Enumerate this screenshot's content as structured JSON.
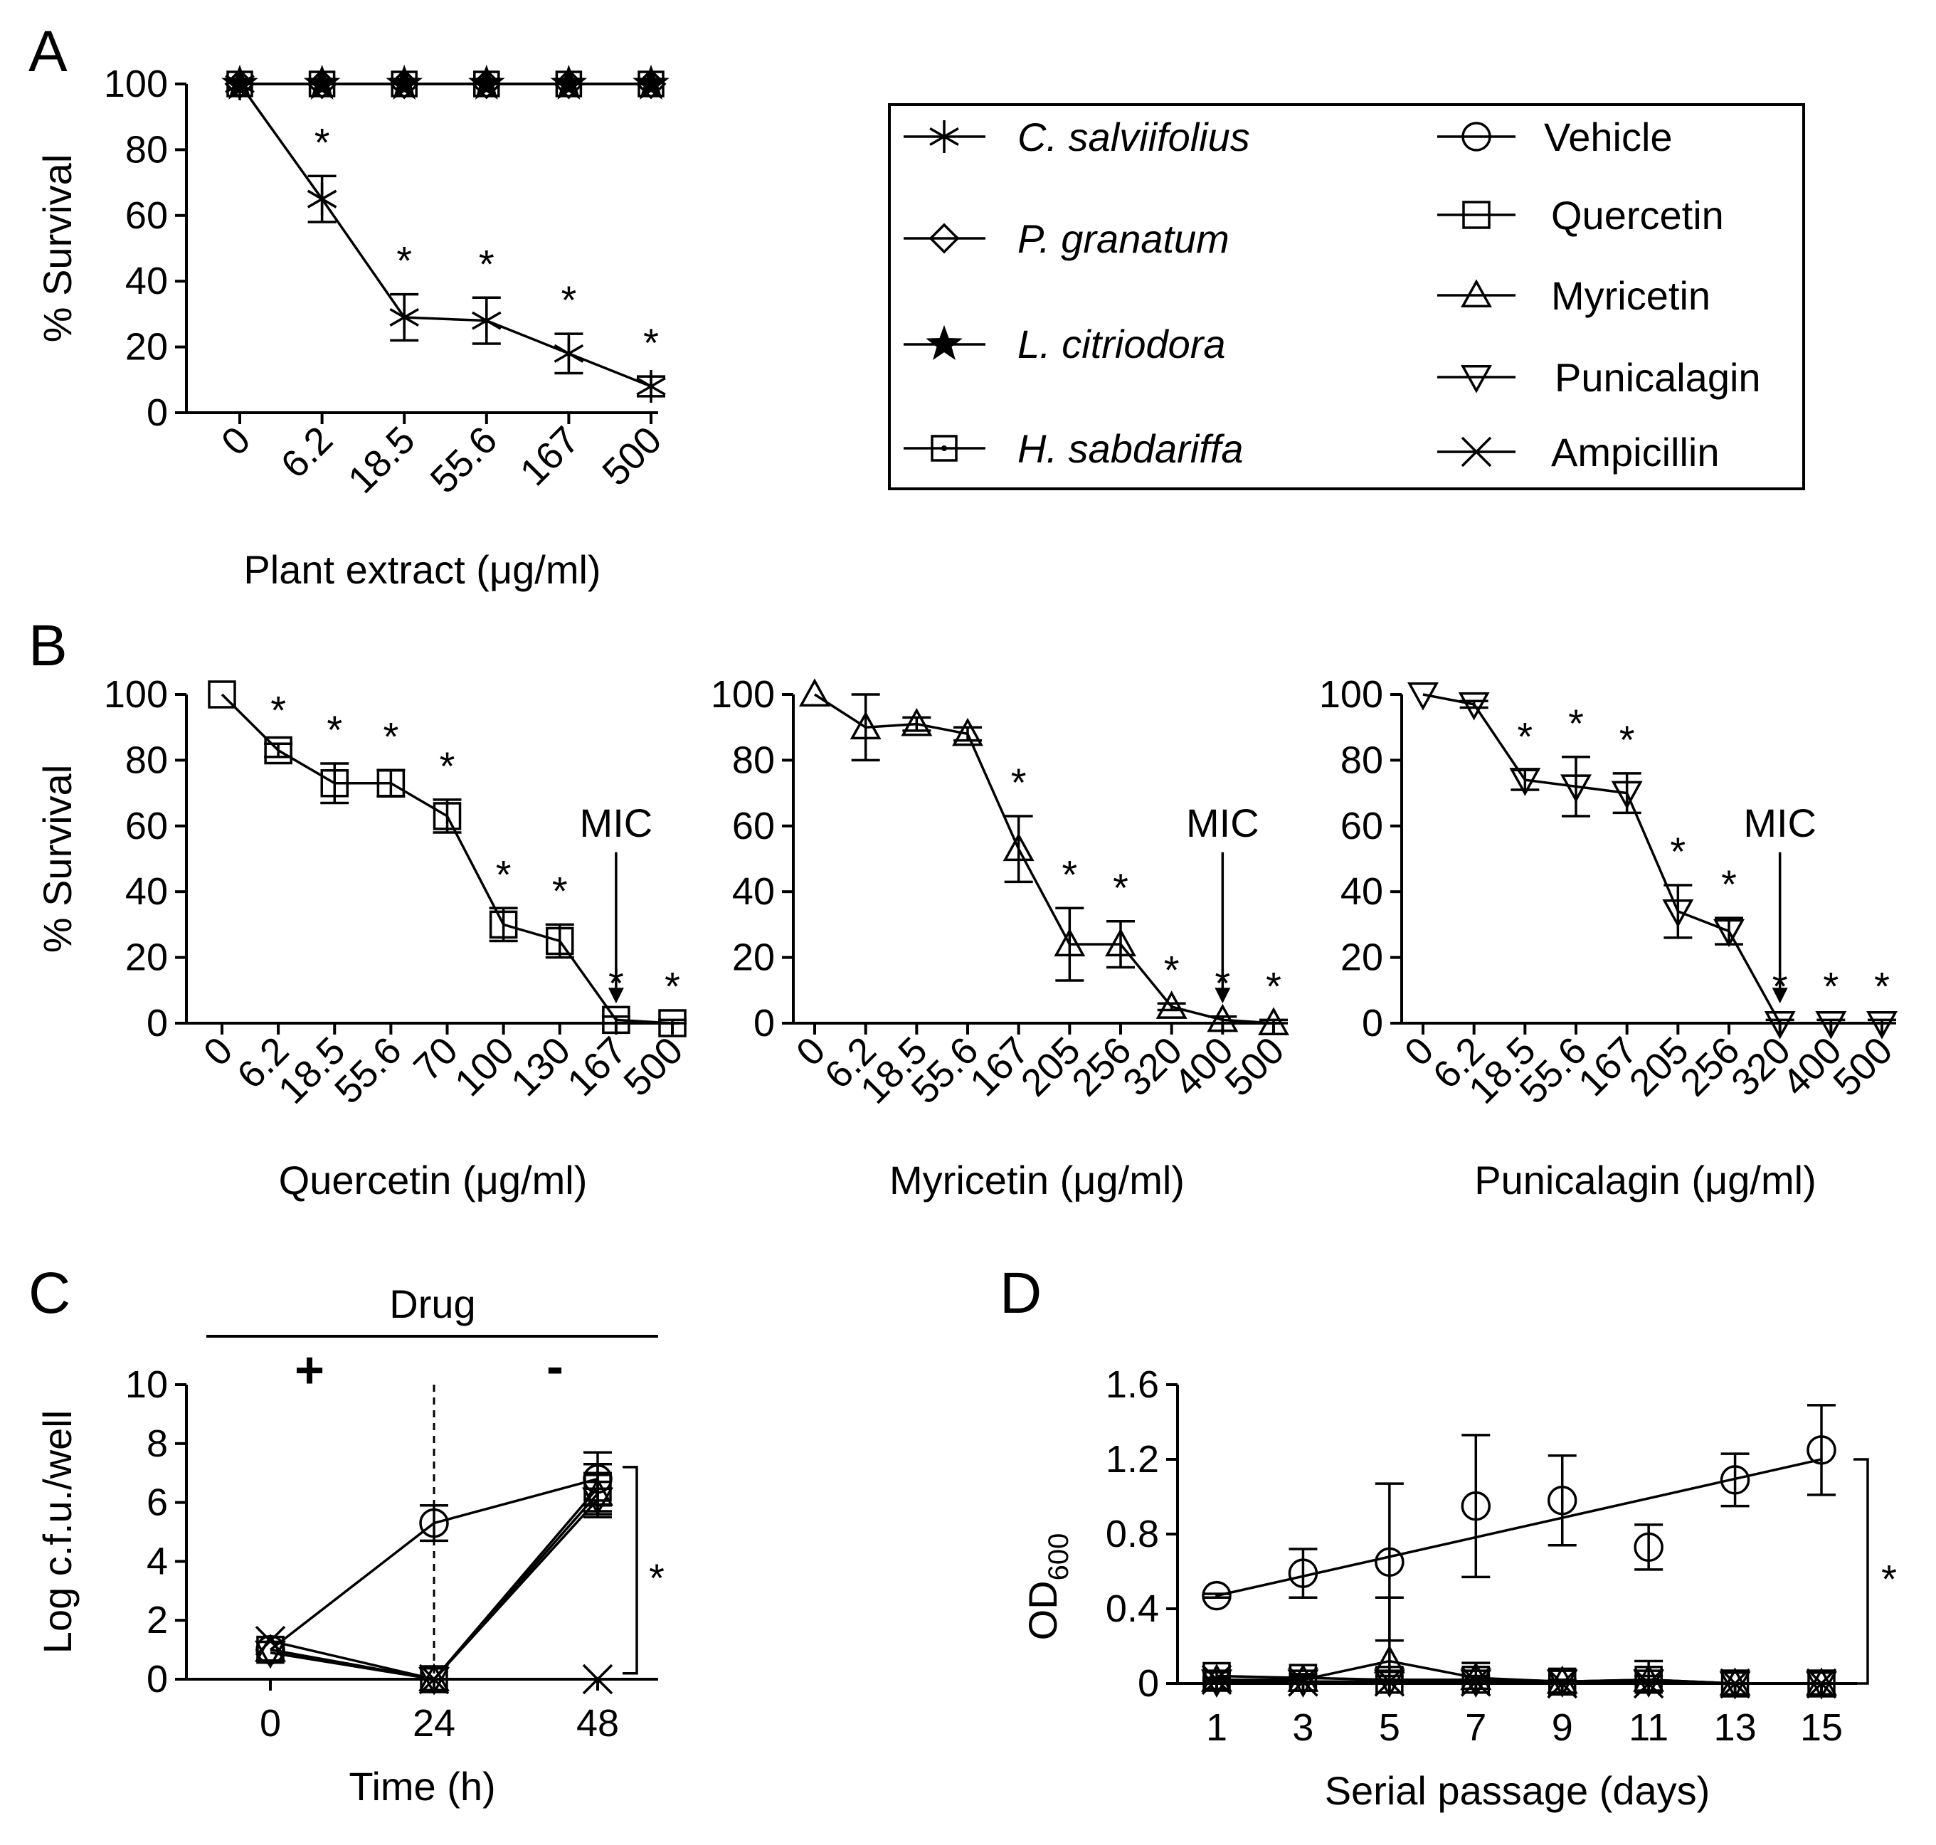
{
  "panel_labels": {
    "A": "A",
    "B": "B",
    "C": "C",
    "D": "D"
  },
  "legend": {
    "extracts": [
      "C. salviifolius",
      "P. granatum",
      "L. citriodora",
      "H. sabdariffa"
    ],
    "compounds": [
      "Vehicle",
      "Quercetin",
      "Myricetin",
      "Punicalagin",
      "Ampicillin"
    ]
  },
  "annotations": {
    "mic": "MIC",
    "drug": "Drug",
    "plus": "+",
    "minus": "-"
  },
  "chart_data": [
    {
      "id": "A",
      "type": "line",
      "xlabel": "Plant extract (μg/ml)",
      "ylabel": "% Survival",
      "categories": [
        "0",
        "6.2",
        "18.5",
        "55.6",
        "167",
        "500"
      ],
      "ylim": [
        0,
        100
      ],
      "yticks": [
        "0",
        "20",
        "40",
        "60",
        "80",
        "100"
      ],
      "series": [
        {
          "name": "C. salviifolius",
          "marker": "asterisk",
          "values": [
            100,
            65,
            29,
            28,
            18,
            8
          ],
          "err": [
            0,
            7,
            7,
            7,
            6,
            3
          ],
          "sig": [
            false,
            true,
            true,
            true,
            true,
            true
          ]
        },
        {
          "name": "P. granatum",
          "marker": "diamond",
          "values": [
            100,
            100,
            100,
            100,
            100,
            100
          ]
        },
        {
          "name": "L. citriodora",
          "marker": "star",
          "values": [
            100,
            100,
            100,
            100,
            100,
            100
          ]
        },
        {
          "name": "H. sabdariffa",
          "marker": "dotsquare",
          "values": [
            100,
            100,
            100,
            100,
            100,
            100
          ]
        }
      ]
    },
    {
      "id": "B1",
      "type": "line",
      "xlabel": "Quercetin (μg/ml)",
      "ylabel": "% Survival",
      "categories": [
        "0",
        "6.2",
        "18.5",
        "55.6",
        "70",
        "100",
        "130",
        "167",
        "500"
      ],
      "ylim": [
        0,
        100
      ],
      "yticks": [
        "0",
        "20",
        "40",
        "60",
        "80",
        "100"
      ],
      "mic_category": "167",
      "series": [
        {
          "name": "Quercetin",
          "marker": "square",
          "values": [
            100,
            83,
            73,
            73,
            63,
            30,
            25,
            1,
            0
          ],
          "err": [
            0,
            2,
            6,
            4,
            5,
            5,
            5,
            1,
            1
          ],
          "sig": [
            false,
            true,
            true,
            true,
            true,
            true,
            true,
            true,
            true
          ]
        }
      ]
    },
    {
      "id": "B2",
      "type": "line",
      "xlabel": "Myricetin (μg/ml)",
      "ylabel": "",
      "categories": [
        "0",
        "6.2",
        "18.5",
        "55.6",
        "167",
        "205",
        "256",
        "320",
        "400",
        "500"
      ],
      "ylim": [
        0,
        100
      ],
      "yticks": [
        "0",
        "20",
        "40",
        "60",
        "80",
        "100"
      ],
      "mic_category": "400",
      "series": [
        {
          "name": "Myricetin",
          "marker": "triangle",
          "values": [
            100,
            90,
            91,
            88,
            53,
            24,
            24,
            5,
            1,
            0
          ],
          "err": [
            0,
            10,
            2,
            2,
            10,
            11,
            7,
            1,
            1,
            1
          ],
          "sig": [
            false,
            false,
            false,
            false,
            true,
            true,
            true,
            true,
            true,
            true
          ]
        }
      ]
    },
    {
      "id": "B3",
      "type": "line",
      "xlabel": "Punicalagin (μg/ml)",
      "ylabel": "",
      "categories": [
        "0",
        "6.2",
        "18.5",
        "55.6",
        "167",
        "205",
        "256",
        "320",
        "400",
        "500"
      ],
      "ylim": [
        0,
        100
      ],
      "yticks": [
        "0",
        "20",
        "40",
        "60",
        "80",
        "100"
      ],
      "mic_category": "320",
      "series": [
        {
          "name": "Punicalagin",
          "marker": "itriangle",
          "values": [
            100,
            97,
            74,
            72,
            70,
            34,
            28,
            0,
            0,
            0
          ],
          "err": [
            0,
            1,
            3,
            9,
            6,
            8,
            4,
            1,
            1,
            1
          ],
          "sig": [
            false,
            false,
            true,
            true,
            true,
            true,
            true,
            true,
            true,
            true
          ]
        }
      ]
    },
    {
      "id": "C",
      "type": "line",
      "xlabel": "Time (h)",
      "ylabel": "Log c.f.u./well",
      "categories": [
        "0",
        "24",
        "48"
      ],
      "ylim": [
        0,
        10
      ],
      "yticks": [
        "0",
        "2",
        "4",
        "6",
        "8",
        "10"
      ],
      "series": [
        {
          "name": "Vehicle",
          "marker": "circle",
          "values": [
            1,
            5.3,
            6.8
          ],
          "err": [
            0,
            0.6,
            0.9
          ]
        },
        {
          "name": "Quercetin",
          "marker": "square",
          "values": [
            1,
            0,
            6.5
          ],
          "err": [
            0,
            0,
            0.8
          ]
        },
        {
          "name": "Myricetin",
          "marker": "triangle",
          "values": [
            1,
            0,
            6.3
          ],
          "err": [
            0,
            0,
            0.7
          ]
        },
        {
          "name": "Punicalagin",
          "marker": "itriangle",
          "values": [
            0.9,
            0,
            6.1
          ],
          "err": [
            0,
            0,
            0.6
          ]
        },
        {
          "name": "Ampicillin",
          "marker": "cross",
          "values": [
            1.3,
            0,
            0
          ],
          "err": [
            0,
            0,
            0
          ]
        }
      ]
    },
    {
      "id": "D",
      "type": "line",
      "xlabel": "Serial passage (days)",
      "ylabel": "OD600",
      "ylabel_base": "OD",
      "ylabel_sub": "600",
      "categories": [
        "1",
        "3",
        "5",
        "7",
        "9",
        "11",
        "13",
        "15"
      ],
      "ylim": [
        0,
        1.6
      ],
      "yticks": [
        "0",
        "0.4",
        "0.8",
        "1.2",
        "1.6"
      ],
      "series": [
        {
          "name": "Vehicle",
          "marker": "circle",
          "values": [
            0.47,
            0.59,
            0.65,
            0.95,
            0.98,
            0.73,
            1.09,
            1.25
          ],
          "err": [
            0.01,
            0.13,
            0.42,
            0.38,
            0.24,
            0.12,
            0.14,
            0.24
          ],
          "fit": [
            0.47,
            1.2
          ]
        },
        {
          "name": "Quercetin",
          "marker": "square",
          "values": [
            0.04,
            0.03,
            0.02,
            0.02,
            0.01,
            0.02,
            0.0,
            0.0
          ],
          "err": [
            0.02,
            0.02,
            0.02,
            0.02,
            0.01,
            0.02,
            0.0,
            0.0
          ]
        },
        {
          "name": "Myricetin",
          "marker": "triangle",
          "values": [
            0.02,
            0.02,
            0.12,
            0.03,
            0.01,
            0.02,
            0.0,
            0.0
          ],
          "err": [
            0.01,
            0.02,
            0.34,
            0.08,
            0.01,
            0.1,
            0.0,
            0.0
          ]
        },
        {
          "name": "Punicalagin",
          "marker": "itriangle",
          "values": [
            0.01,
            0.01,
            0.01,
            0.01,
            0.01,
            0.01,
            0.0,
            0.0
          ]
        },
        {
          "name": "Ampicillin",
          "marker": "cross",
          "values": [
            0.02,
            0.01,
            0.01,
            0.01,
            0.0,
            0.0,
            0.0,
            0.0
          ]
        }
      ]
    }
  ]
}
